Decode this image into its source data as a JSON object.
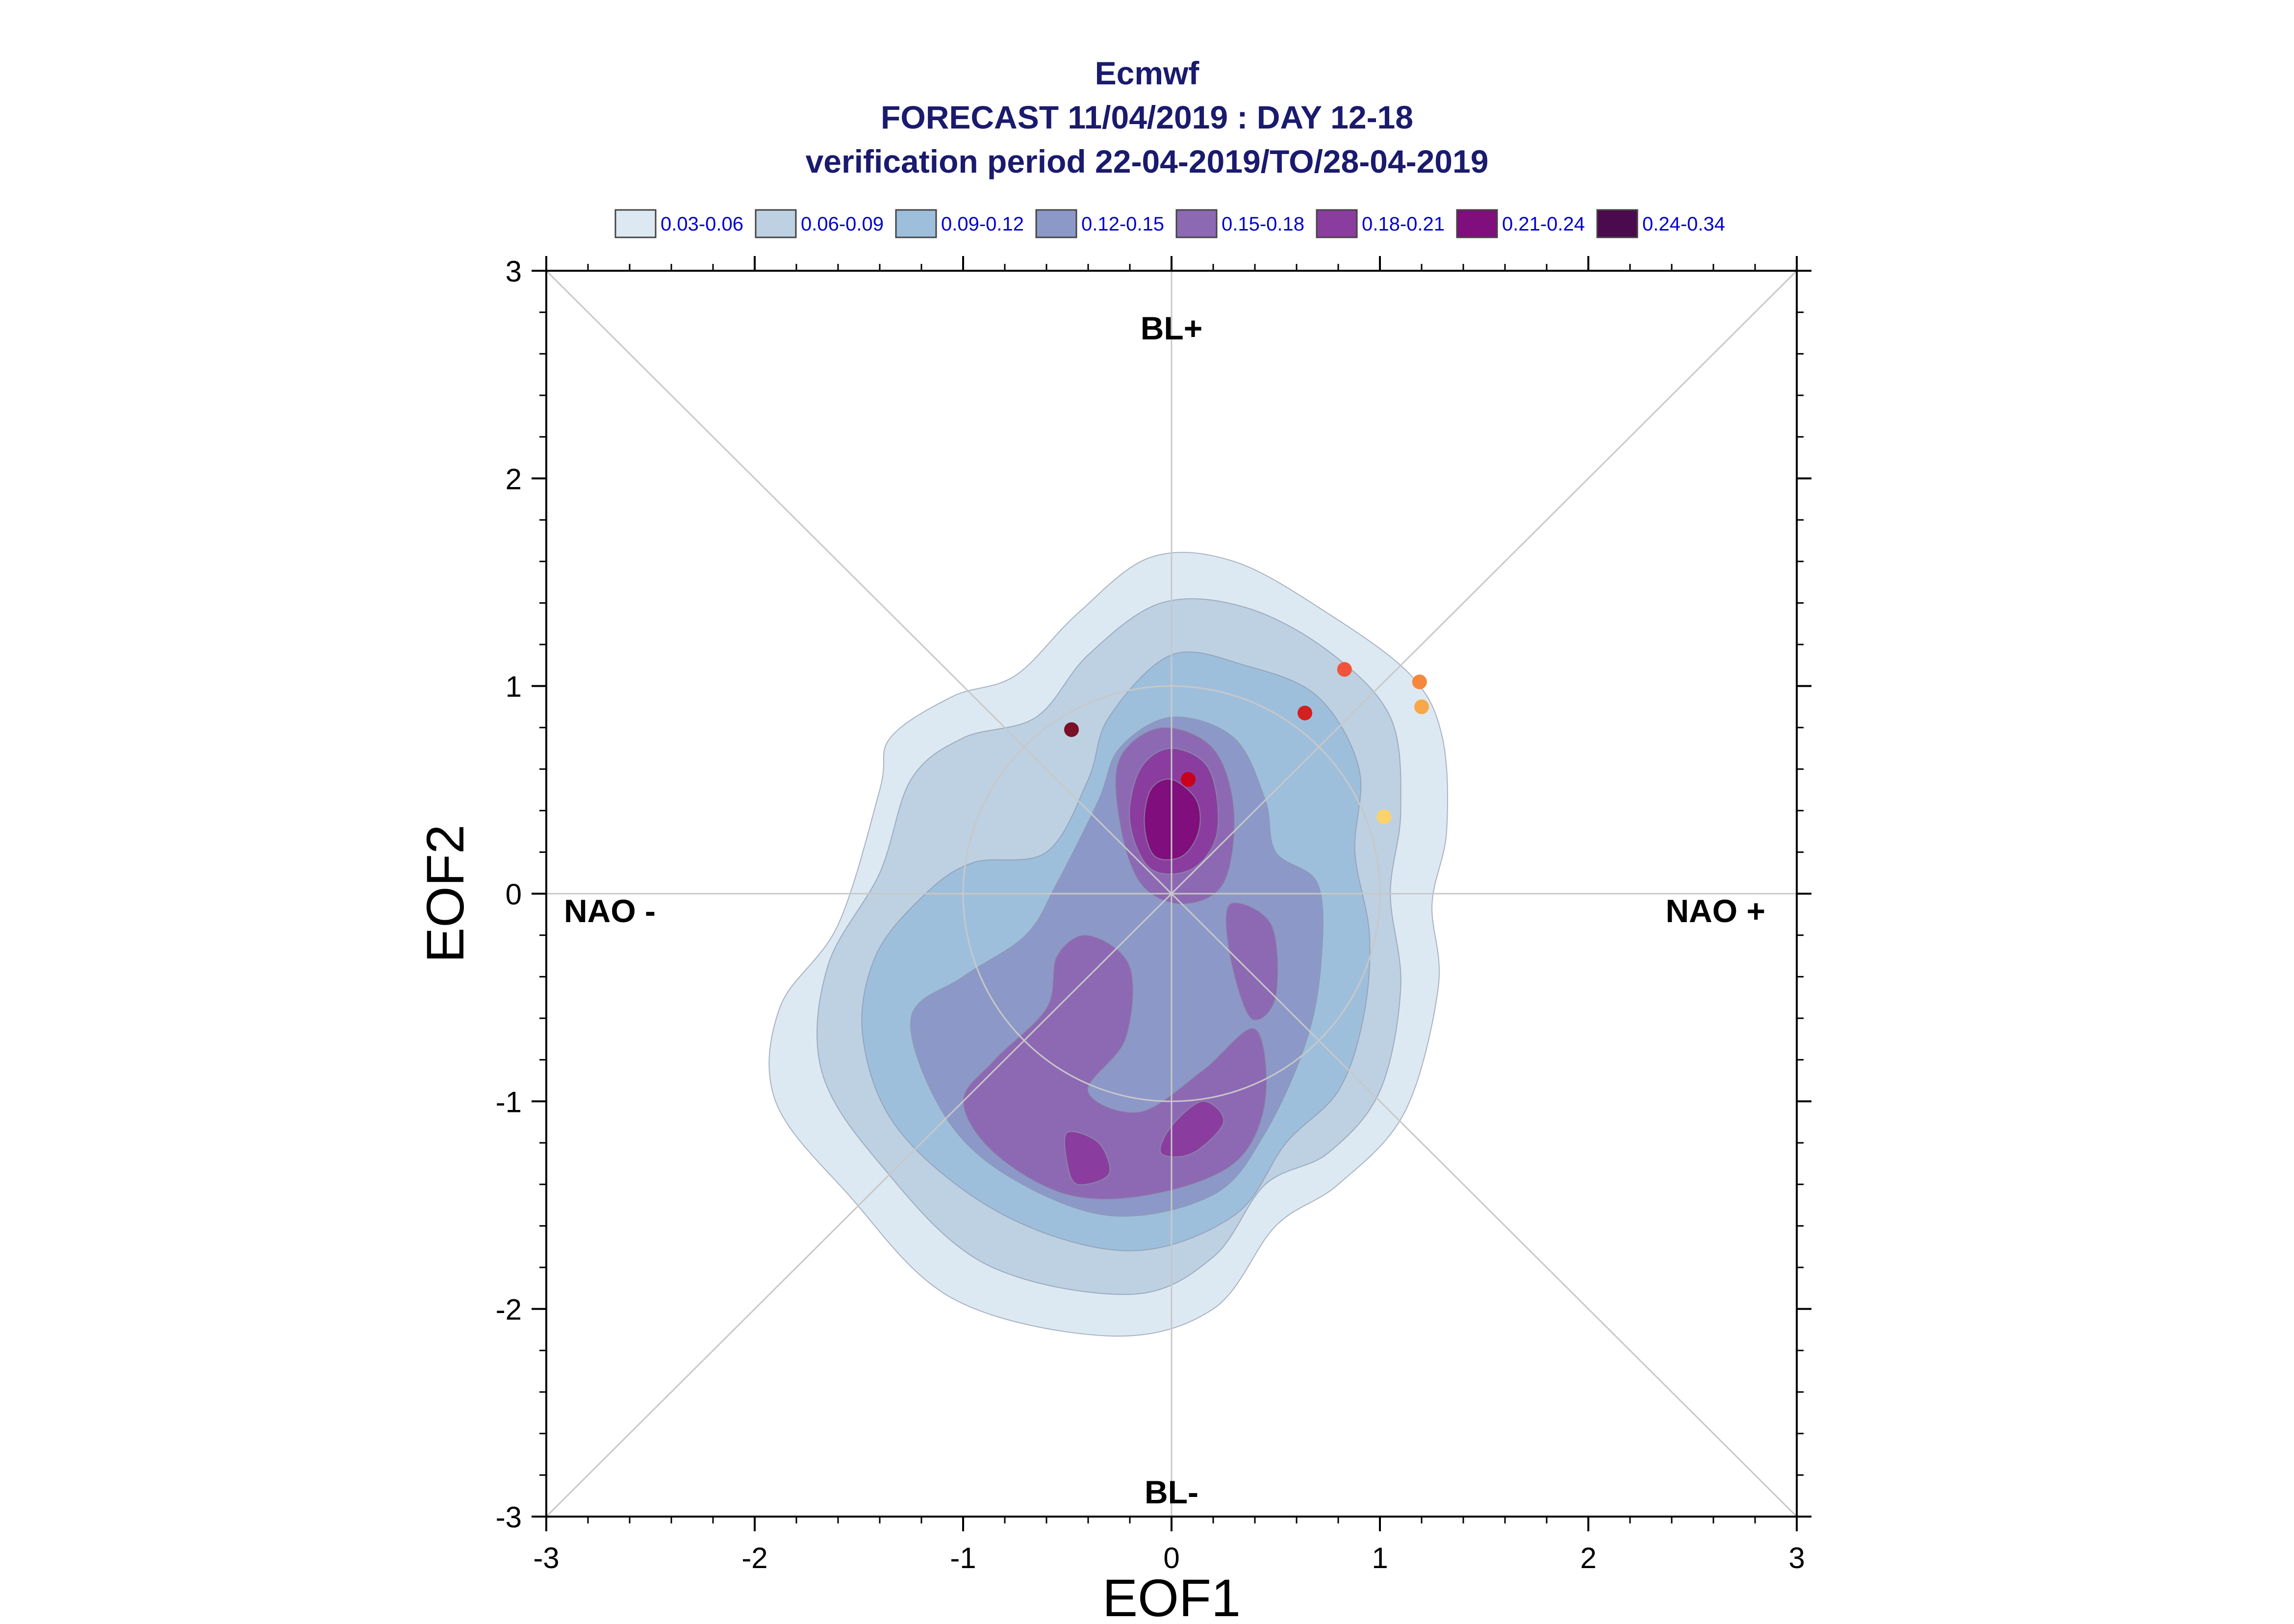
{
  "chart_data": {
    "type": "contour-scatter",
    "title": [
      "Ecmwf",
      "FORECAST 11/04/2019 : DAY 12-18",
      "verification period 22-04-2019/TO/28-04-2019"
    ],
    "xlabel": "EOF1",
    "ylabel": "EOF2",
    "xlim": [
      -3,
      3
    ],
    "ylim": [
      -3,
      3
    ],
    "xticks": [
      "-3",
      "-2",
      "-1",
      "0",
      "1",
      "2",
      "3"
    ],
    "yticks": [
      "-3",
      "-2",
      "-1",
      "0",
      "1",
      "2",
      "3"
    ],
    "regime_labels": {
      "top": "BL+",
      "bottom": "BL-",
      "left": "NAO -",
      "right": "NAO +"
    },
    "reference_circle_radius": 1.0,
    "grid": "diagonals-and-axes",
    "legend": {
      "placement": "top",
      "entries": [
        {
          "label": "0.03-0.06",
          "color": "#dde9f2"
        },
        {
          "label": "0.06-0.09",
          "color": "#bdd1e3"
        },
        {
          "label": "0.09-0.12",
          "color": "#9ebfdc"
        },
        {
          "label": "0.12-0.15",
          "color": "#8c99c8"
        },
        {
          "label": "0.15-0.18",
          "color": "#8d69b3"
        },
        {
          "label": "0.18-0.21",
          "color": "#8a3d9e"
        },
        {
          "label": "0.21-0.24",
          "color": "#800e7c"
        },
        {
          "label": "0.24-0.34",
          "color": "#4c0a4e"
        }
      ]
    },
    "density_levels": [
      {
        "range": "0.03-0.06",
        "color": "#dde9f2",
        "outline": [
          [
            -0.1,
            1.62
          ],
          [
            0.3,
            1.6
          ],
          [
            0.75,
            1.35
          ],
          [
            1.15,
            1.05
          ],
          [
            1.3,
            0.75
          ],
          [
            1.32,
            0.3
          ],
          [
            1.25,
            -0.05
          ],
          [
            1.28,
            -0.45
          ],
          [
            1.12,
            -1.05
          ],
          [
            0.8,
            -1.4
          ],
          [
            0.5,
            -1.6
          ],
          [
            0.2,
            -2.0
          ],
          [
            -0.3,
            -2.13
          ],
          [
            -1.05,
            -1.95
          ],
          [
            -1.55,
            -1.45
          ],
          [
            -1.9,
            -1.0
          ],
          [
            -1.88,
            -0.55
          ],
          [
            -1.6,
            -0.15
          ],
          [
            -1.4,
            0.5
          ],
          [
            -1.35,
            0.75
          ],
          [
            -1.05,
            0.95
          ],
          [
            -0.75,
            1.05
          ],
          [
            -0.45,
            1.35
          ]
        ]
      },
      {
        "range": "0.06-0.09",
        "color": "#bdd1e3",
        "outline": [
          [
            -0.05,
            1.4
          ],
          [
            0.35,
            1.38
          ],
          [
            0.75,
            1.17
          ],
          [
            1.05,
            0.85
          ],
          [
            1.1,
            0.4
          ],
          [
            1.05,
            0.0
          ],
          [
            1.1,
            -0.45
          ],
          [
            1.0,
            -0.95
          ],
          [
            0.75,
            -1.25
          ],
          [
            0.45,
            -1.4
          ],
          [
            0.2,
            -1.75
          ],
          [
            -0.2,
            -1.93
          ],
          [
            -0.9,
            -1.78
          ],
          [
            -1.4,
            -1.3
          ],
          [
            -1.68,
            -0.85
          ],
          [
            -1.65,
            -0.35
          ],
          [
            -1.4,
            0.1
          ],
          [
            -1.25,
            0.55
          ],
          [
            -1.0,
            0.75
          ],
          [
            -0.65,
            0.85
          ],
          [
            -0.4,
            1.15
          ]
        ]
      },
      {
        "range": "0.09-0.12",
        "color": "#9ebfdc",
        "outline": [
          [
            0.0,
            1.15
          ],
          [
            0.35,
            1.1
          ],
          [
            0.7,
            0.95
          ],
          [
            0.9,
            0.6
          ],
          [
            0.88,
            0.2
          ],
          [
            0.95,
            -0.2
          ],
          [
            0.92,
            -0.6
          ],
          [
            0.8,
            -0.95
          ],
          [
            0.55,
            -1.2
          ],
          [
            0.3,
            -1.55
          ],
          [
            -0.2,
            -1.72
          ],
          [
            -0.8,
            -1.55
          ],
          [
            -1.3,
            -1.15
          ],
          [
            -1.48,
            -0.7
          ],
          [
            -1.42,
            -0.3
          ],
          [
            -1.18,
            0.0
          ],
          [
            -0.95,
            0.15
          ],
          [
            -0.6,
            0.2
          ],
          [
            -0.4,
            0.55
          ],
          [
            -0.3,
            0.85
          ]
        ]
      },
      {
        "range": "0.12-0.15",
        "color": "#8c99c8",
        "outline": [
          [
            0.0,
            0.85
          ],
          [
            0.3,
            0.75
          ],
          [
            0.45,
            0.45
          ],
          [
            0.5,
            0.2
          ],
          [
            0.7,
            0.05
          ],
          [
            0.72,
            -0.3
          ],
          [
            0.65,
            -0.7
          ],
          [
            0.45,
            -1.15
          ],
          [
            0.2,
            -1.45
          ],
          [
            -0.3,
            -1.55
          ],
          [
            -0.8,
            -1.35
          ],
          [
            -1.1,
            -1.05
          ],
          [
            -1.25,
            -0.6
          ],
          [
            -1.0,
            -0.4
          ],
          [
            -0.7,
            -0.2
          ],
          [
            -0.55,
            0.05
          ],
          [
            -0.35,
            0.45
          ],
          [
            -0.25,
            0.7
          ]
        ]
      },
      {
        "range": "0.15-0.18",
        "color": "#8d69b3",
        "outline": [
          [
            -0.05,
            0.8
          ],
          [
            0.2,
            0.7
          ],
          [
            0.3,
            0.4
          ],
          [
            0.25,
            0.05
          ],
          [
            0.05,
            -0.05
          ],
          [
            -0.15,
            0.05
          ],
          [
            -0.25,
            0.35
          ],
          [
            -0.25,
            0.65
          ]
        ]
      },
      {
        "range": "0.15-0.18",
        "color": "#8d69b3",
        "outline": [
          [
            -0.4,
            -0.2
          ],
          [
            -0.2,
            -0.35
          ],
          [
            -0.22,
            -0.7
          ],
          [
            -0.4,
            -0.95
          ],
          [
            -0.15,
            -1.05
          ],
          [
            0.15,
            -0.85
          ],
          [
            0.4,
            -0.65
          ],
          [
            0.45,
            -1.0
          ],
          [
            0.3,
            -1.3
          ],
          [
            -0.1,
            -1.45
          ],
          [
            -0.5,
            -1.45
          ],
          [
            -0.85,
            -1.25
          ],
          [
            -1.0,
            -1.0
          ],
          [
            -0.85,
            -0.8
          ],
          [
            -0.6,
            -0.55
          ],
          [
            -0.55,
            -0.3
          ]
        ]
      },
      {
        "range": "0.15-0.18",
        "color": "#8d69b3",
        "outline": [
          [
            0.28,
            -0.05
          ],
          [
            0.48,
            -0.15
          ],
          [
            0.5,
            -0.5
          ],
          [
            0.38,
            -0.6
          ],
          [
            0.28,
            -0.3
          ]
        ]
      },
      {
        "range": "0.18-0.21",
        "color": "#8a3d9e",
        "outline": [
          [
            0.0,
            0.7
          ],
          [
            0.18,
            0.6
          ],
          [
            0.22,
            0.3
          ],
          [
            0.1,
            0.12
          ],
          [
            -0.1,
            0.12
          ],
          [
            -0.2,
            0.35
          ],
          [
            -0.15,
            0.6
          ]
        ]
      },
      {
        "range": "0.18-0.21",
        "color": "#8a3d9e",
        "outline": [
          [
            -0.5,
            -1.15
          ],
          [
            -0.35,
            -1.2
          ],
          [
            -0.3,
            -1.35
          ],
          [
            -0.45,
            -1.4
          ],
          [
            -0.5,
            -1.3
          ]
        ]
      },
      {
        "range": "0.18-0.21",
        "color": "#8a3d9e",
        "outline": [
          [
            0.15,
            -1.0
          ],
          [
            0.25,
            -1.1
          ],
          [
            0.1,
            -1.25
          ],
          [
            -0.05,
            -1.25
          ],
          [
            0.0,
            -1.12
          ]
        ]
      },
      {
        "range": "0.21-0.24",
        "color": "#800e7c",
        "outline": [
          [
            0.0,
            0.55
          ],
          [
            0.12,
            0.45
          ],
          [
            0.13,
            0.3
          ],
          [
            0.05,
            0.18
          ],
          [
            -0.08,
            0.18
          ],
          [
            -0.13,
            0.33
          ],
          [
            -0.1,
            0.5
          ]
        ]
      }
    ],
    "scatter_points": [
      {
        "x": -0.48,
        "y": 0.79,
        "color": "#7a0f25"
      },
      {
        "x": 0.08,
        "y": 0.55,
        "color": "#c8001c"
      },
      {
        "x": 0.64,
        "y": 0.87,
        "color": "#d42020"
      },
      {
        "x": 0.83,
        "y": 1.08,
        "color": "#f0553c"
      },
      {
        "x": 1.19,
        "y": 1.02,
        "color": "#f5883c"
      },
      {
        "x": 1.2,
        "y": 0.9,
        "color": "#f8a848"
      },
      {
        "x": 1.02,
        "y": 0.37,
        "color": "#fcd26a"
      }
    ]
  }
}
